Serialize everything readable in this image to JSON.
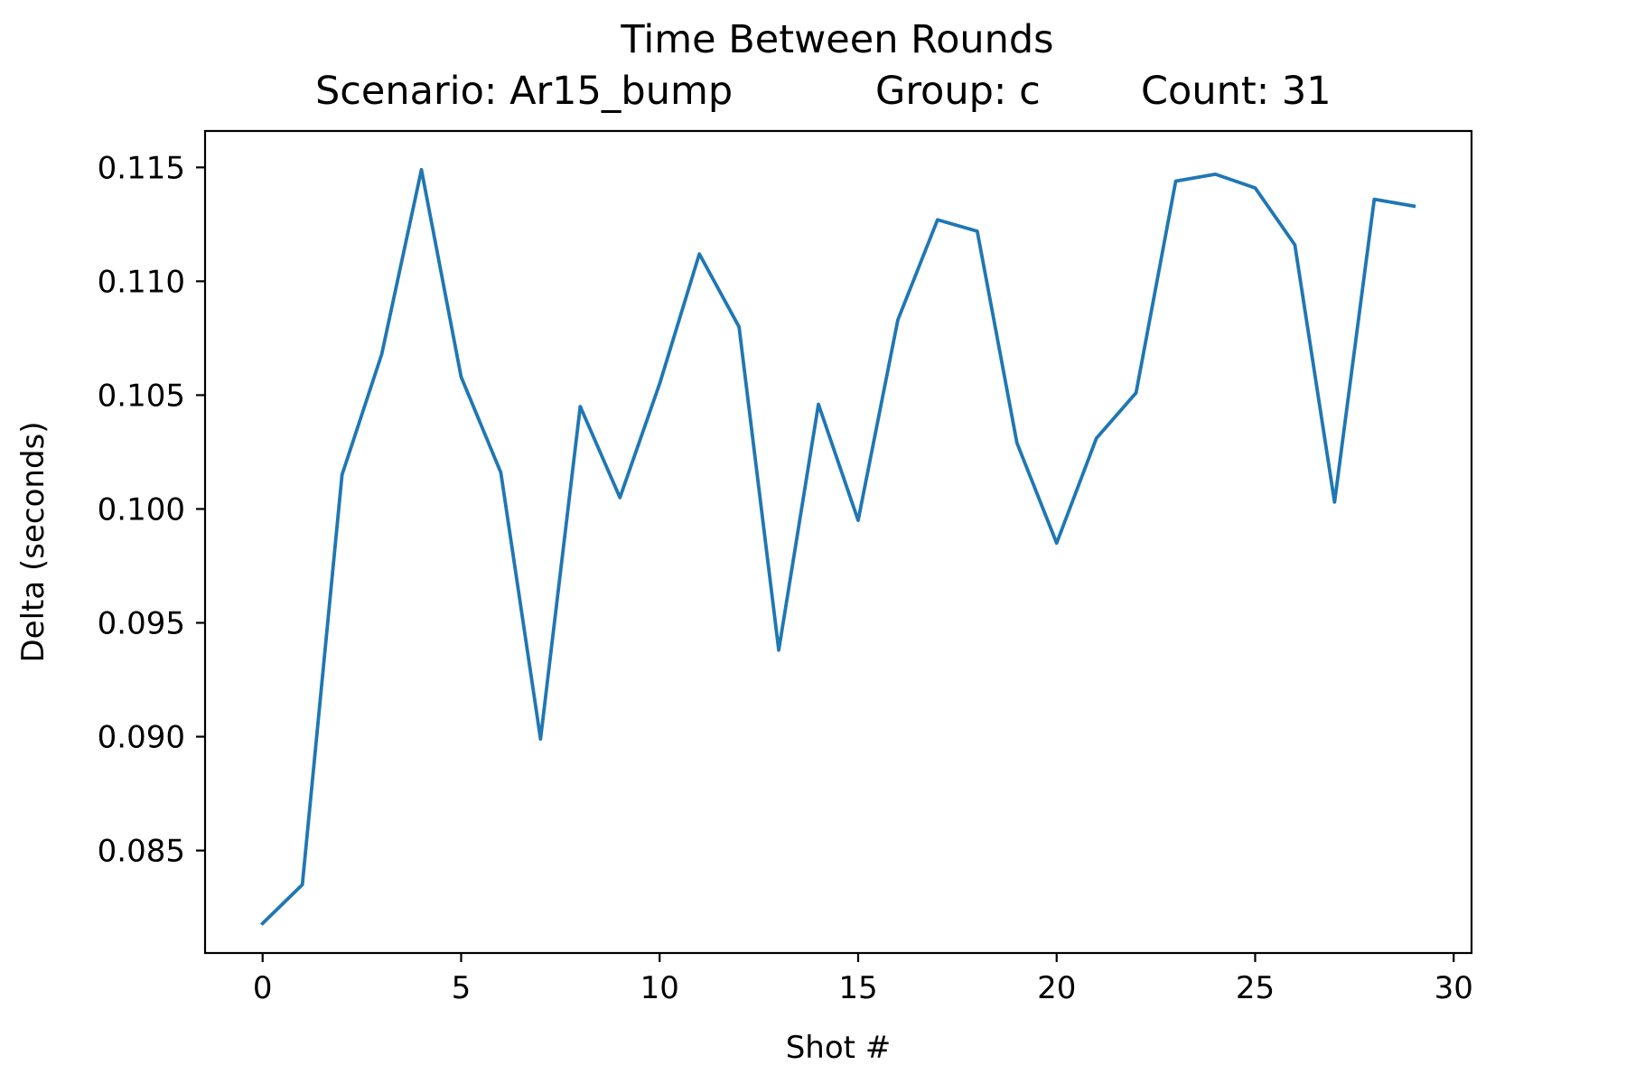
{
  "chart_data": {
    "type": "line",
    "title": "Time Between Rounds",
    "subtitle": {
      "scenario": "Scenario: Ar15_bump",
      "group": "Group: c",
      "count": "Count: 31"
    },
    "xlabel": "Shot #",
    "ylabel": "Delta (seconds)",
    "xlim": [
      -1.45,
      30.45
    ],
    "ylim": [
      0.0805,
      0.1166
    ],
    "x_ticks": [
      0,
      5,
      10,
      15,
      20,
      25,
      30
    ],
    "x_tick_labels": [
      "0",
      "5",
      "10",
      "15",
      "20",
      "25",
      "30"
    ],
    "y_ticks": [
      0.085,
      0.09,
      0.095,
      0.1,
      0.105,
      0.11,
      0.115
    ],
    "y_tick_labels": [
      "0.085",
      "0.090",
      "0.095",
      "0.100",
      "0.105",
      "0.110",
      "0.115"
    ],
    "grid": false,
    "color": "#1f77b4",
    "series": [
      {
        "x": [
          0,
          1,
          2,
          3,
          4,
          5,
          6,
          7,
          8,
          9,
          10,
          11,
          12,
          13,
          14,
          15,
          16,
          17,
          18,
          19,
          20,
          21,
          22,
          23,
          24,
          25,
          26,
          27,
          28,
          29
        ],
        "values": [
          0.0818,
          0.0835,
          0.1015,
          0.1068,
          0.1149,
          0.1058,
          0.1016,
          0.0899,
          0.1045,
          0.1005,
          0.1055,
          0.1112,
          0.108,
          0.0938,
          0.1046,
          0.0995,
          0.1083,
          0.1127,
          0.1122,
          0.1029,
          0.0985,
          0.1031,
          0.1051,
          0.1144,
          0.1147,
          0.1141,
          0.1116,
          0.1003,
          0.1136,
          0.1133
        ]
      }
    ]
  }
}
